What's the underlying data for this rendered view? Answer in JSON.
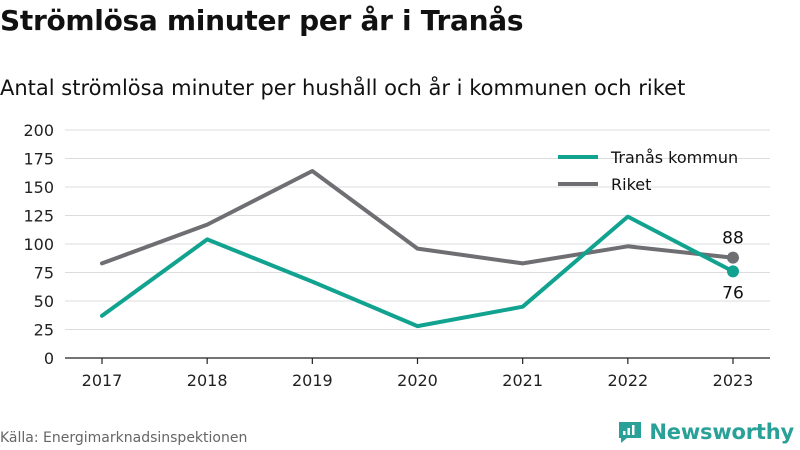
{
  "title": "Strömlösa minuter per år i Tranås",
  "subtitle": "Antal strömlösa minuter per hushåll och år i kommunen och riket",
  "source": "Källa: Energimarknadsinspektionen",
  "brand": {
    "name": "Newsworthy",
    "icon": "newsworthy-logo-icon",
    "color": "#2aa198"
  },
  "chart_data": {
    "type": "line",
    "x": [
      2017,
      2018,
      2019,
      2020,
      2021,
      2022,
      2023
    ],
    "series": [
      {
        "name": "Tranås kommun",
        "color": "#11a38f",
        "values": [
          37,
          104,
          67,
          28,
          45,
          124,
          76
        ],
        "end_label": "76"
      },
      {
        "name": "Riket",
        "color": "#6f6e73",
        "values": [
          83,
          117,
          164,
          96,
          83,
          98,
          88
        ],
        "end_label": "88"
      }
    ],
    "ylim": [
      0,
      200
    ],
    "yticks": [
      0,
      25,
      50,
      75,
      100,
      125,
      150,
      175,
      200
    ],
    "grid": true,
    "legend": "top-right",
    "xlabel": "",
    "ylabel": ""
  }
}
